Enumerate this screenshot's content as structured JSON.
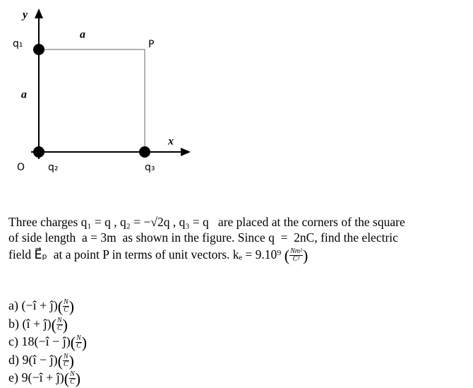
{
  "diagram": {
    "y_axis": "y",
    "x_axis": "x",
    "origin": "O",
    "q1": "q₁",
    "q2": "q₂",
    "q3": "q₃",
    "side_top": "a",
    "side_left": "a",
    "point": "P"
  },
  "question": {
    "line1": "Three charges q₁ = q , q₂ = −√2q , q₃ = q   are placed at the corners of the square",
    "line2": "of side length  a = 3m  as shown in the figure. Since q  =  2nC, find the electric",
    "line3": "field E⃗ₚ  at a point P in terms of unit vectors. kₑ = 9.10⁹",
    "unit_num": "Nm²",
    "unit_den": "C²"
  },
  "options": [
    {
      "label": "a)",
      "expr": "(−î + ĵ)",
      "unit_num": "N",
      "unit_den": "C"
    },
    {
      "label": "b)",
      "expr": "(î + ĵ)",
      "unit_num": "N",
      "unit_den": "C"
    },
    {
      "label": "c)",
      "expr": "18(−î − ĵ)",
      "unit_num": "N",
      "unit_den": "C"
    },
    {
      "label": "d)",
      "expr": "9(î − ĵ)",
      "unit_num": "N",
      "unit_den": "C"
    },
    {
      "label": "e)",
      "expr": "9(−î + ĵ)",
      "unit_num": "N",
      "unit_den": "C"
    }
  ]
}
